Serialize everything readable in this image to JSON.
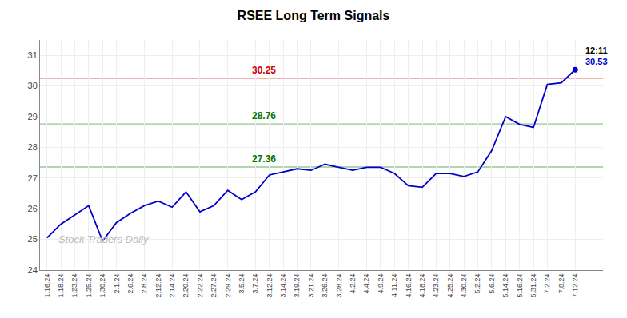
{
  "chart_data": {
    "type": "line",
    "title": "RSEE Long Term Signals",
    "categories": [
      "1.16.24",
      "1.18.24",
      "1.23.24",
      "1.25.24",
      "1.30.24",
      "2.1.24",
      "2.6.24",
      "2.8.24",
      "2.12.24",
      "2.14.24",
      "2.20.24",
      "2.22.24",
      "2.27.24",
      "2.29.24",
      "3.5.24",
      "3.7.24",
      "3.12.24",
      "3.14.24",
      "3.19.24",
      "3.21.24",
      "3.26.24",
      "3.28.24",
      "4.2.24",
      "4.4.24",
      "4.9.24",
      "4.11.24",
      "4.16.24",
      "4.18.24",
      "4.23.24",
      "4.25.24",
      "4.30.24",
      "5.2.24",
      "5.6.24",
      "5.14.24",
      "5.16.24",
      "5.31.24",
      "7.2.24",
      "7.8.24",
      "7.12.24"
    ],
    "values": [
      25.05,
      25.5,
      25.8,
      26.1,
      24.95,
      25.55,
      25.85,
      26.1,
      26.25,
      26.05,
      26.55,
      25.9,
      26.1,
      26.6,
      26.3,
      26.55,
      27.1,
      27.2,
      27.3,
      27.25,
      27.45,
      27.35,
      27.25,
      27.35,
      27.35,
      27.15,
      26.75,
      26.7,
      27.15,
      27.15,
      27.05,
      27.2,
      27.9,
      29.0,
      28.75,
      28.65,
      30.05,
      30.1,
      30.53
    ],
    "color": "#0000cc",
    "hlines": [
      {
        "value": 30.25,
        "label": "30.25",
        "color": "#cc0000"
      },
      {
        "value": 28.76,
        "label": "28.76",
        "color": "#007700"
      },
      {
        "value": 27.36,
        "label": "27.36",
        "color": "#007700"
      }
    ],
    "annotations": [
      "12:11",
      "30.53"
    ],
    "watermark": "Stock Traders Daily",
    "ylim": [
      24,
      31.5
    ],
    "yticks": [
      24,
      25,
      26,
      27,
      28,
      29,
      30,
      31
    ],
    "grid": true
  }
}
